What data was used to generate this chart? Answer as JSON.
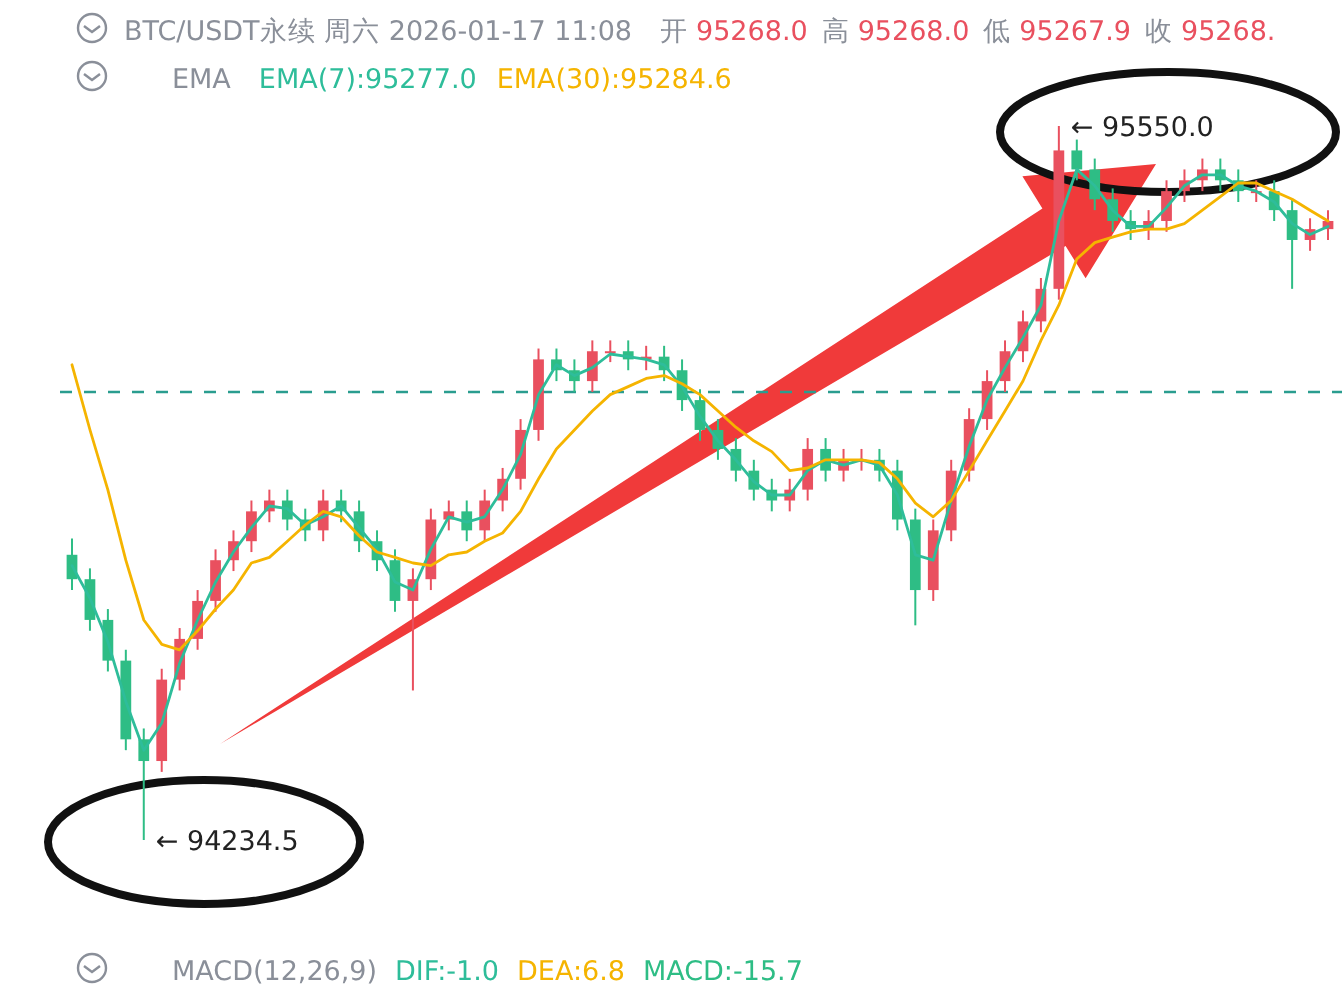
{
  "chart_data": {
    "type": "candlestick",
    "title": "BTC/USDT永续  周六  2026-01-17 11:08",
    "legend_title": "EMA",
    "legend": "top left",
    "categories": [
      null,
      null,
      null,
      null,
      null,
      null,
      null,
      null,
      null,
      null,
      null,
      null,
      null,
      null,
      null,
      null,
      null,
      null,
      null,
      null,
      null,
      null,
      null,
      null,
      null,
      null,
      null,
      null,
      null,
      null,
      null,
      null,
      null,
      null,
      null,
      null,
      null,
      null,
      null,
      null,
      null,
      null,
      null,
      null,
      null,
      null,
      null,
      null,
      null,
      null,
      null,
      null,
      null,
      null,
      null,
      null,
      null,
      null,
      null,
      null,
      null,
      null,
      null,
      null,
      null,
      null,
      null,
      null,
      null,
      null,
      null
    ],
    "ohlc": [
      [
        94760,
        94790,
        94695,
        94715
      ],
      [
        94715,
        94735,
        94620,
        94640
      ],
      [
        94640,
        94660,
        94545,
        94565
      ],
      [
        94565,
        94585,
        94400,
        94420
      ],
      [
        94420,
        94440,
        94234.5,
        94380
      ],
      [
        94380,
        94550,
        94360,
        94530
      ],
      [
        94530,
        94625,
        94510,
        94605
      ],
      [
        94605,
        94695,
        94585,
        94675
      ],
      [
        94675,
        94770,
        94655,
        94750
      ],
      [
        94750,
        94805,
        94730,
        94785
      ],
      [
        94785,
        94860,
        94765,
        94840
      ],
      [
        94840,
        94880,
        94820,
        94860
      ],
      [
        94860,
        94880,
        94805,
        94825
      ],
      [
        94825,
        94845,
        94785,
        94805
      ],
      [
        94805,
        94880,
        94785,
        94860
      ],
      [
        94860,
        94880,
        94820,
        94840
      ],
      [
        94840,
        94860,
        94765,
        94785
      ],
      [
        94785,
        94805,
        94730,
        94750
      ],
      [
        94750,
        94770,
        94655,
        94675
      ],
      [
        94675,
        94735,
        94510,
        94715
      ],
      [
        94715,
        94845,
        94695,
        94825
      ],
      [
        94825,
        94860,
        94805,
        94840
      ],
      [
        94840,
        94860,
        94785,
        94805
      ],
      [
        94805,
        94880,
        94785,
        94860
      ],
      [
        94860,
        94920,
        94840,
        94900
      ],
      [
        94900,
        95010,
        94880,
        94990
      ],
      [
        94990,
        95140,
        94970,
        95120
      ],
      [
        95120,
        95140,
        95080,
        95100
      ],
      [
        95100,
        95120,
        95060,
        95080
      ],
      [
        95080,
        95155,
        95060,
        95135
      ],
      [
        95135,
        95155,
        95115,
        95135
      ],
      [
        95135,
        95155,
        95100,
        95120
      ],
      [
        95120,
        95145,
        95100,
        95125
      ],
      [
        95125,
        95145,
        95080,
        95100
      ],
      [
        95100,
        95120,
        95025,
        95045
      ],
      [
        95045,
        95065,
        94970,
        94990
      ],
      [
        94990,
        95010,
        94935,
        94955
      ],
      [
        94955,
        94975,
        94895,
        94915
      ],
      [
        94915,
        94935,
        94860,
        94880
      ],
      [
        94880,
        94900,
        94840,
        94860
      ],
      [
        94860,
        94900,
        94840,
        94880
      ],
      [
        94880,
        94975,
        94860,
        94955
      ],
      [
        94955,
        94975,
        94895,
        94915
      ],
      [
        94915,
        94955,
        94895,
        94935
      ],
      [
        94935,
        94955,
        94915,
        94935
      ],
      [
        94935,
        94955,
        94895,
        94915
      ],
      [
        94915,
        94935,
        94805,
        94825
      ],
      [
        94825,
        94845,
        94630,
        94695
      ],
      [
        94695,
        94825,
        94675,
        94805
      ],
      [
        94805,
        94935,
        94785,
        94915
      ],
      [
        94915,
        95030,
        94895,
        95010
      ],
      [
        95010,
        95100,
        94990,
        95080
      ],
      [
        95080,
        95155,
        95060,
        95135
      ],
      [
        95135,
        95210,
        95115,
        95190
      ],
      [
        95190,
        95270,
        95170,
        95250
      ],
      [
        95250,
        95550.0,
        95230,
        95505
      ],
      [
        95505,
        95525,
        95450,
        95470
      ],
      [
        95470,
        95490,
        95395,
        95415
      ],
      [
        95415,
        95435,
        95355,
        95375
      ],
      [
        95375,
        95395,
        95340,
        95360
      ],
      [
        95360,
        95395,
        95340,
        95375
      ],
      [
        95375,
        95450,
        95355,
        95430
      ],
      [
        95430,
        95470,
        95410,
        95450
      ],
      [
        95450,
        95490,
        95430,
        95470
      ],
      [
        95470,
        95490,
        95430,
        95450
      ],
      [
        95450,
        95470,
        95410,
        95430
      ],
      [
        95430,
        95450,
        95410,
        95430
      ],
      [
        95430,
        95450,
        95375,
        95395
      ],
      [
        95395,
        95415,
        95250,
        95340
      ],
      [
        95340,
        95380,
        95320,
        95360
      ],
      [
        95360,
        95395,
        95340,
        95375
      ]
    ],
    "series": [
      {
        "type": "line",
        "name": "EMA(7):95277.0",
        "color": "#2ebd9a",
        "values": [
          94740,
          94680,
          94600,
          94490,
          94400,
          94450,
          94560,
          94640,
          94710,
          94765,
          94810,
          94850,
          94845,
          94815,
          94830,
          94850,
          94810,
          94770,
          94710,
          94695,
          94770,
          94830,
          94820,
          94830,
          94880,
          94945,
          95055,
          95110,
          95090,
          95105,
          95130,
          95125,
          95120,
          95110,
          95070,
          95015,
          94970,
          94935,
          94895,
          94870,
          94870,
          94915,
          94935,
          94925,
          94935,
          94925,
          94870,
          94760,
          94750,
          94860,
          94960,
          95045,
          95105,
          95160,
          95220,
          95375,
          95470,
          95440,
          95395,
          95365,
          95365,
          95400,
          95440,
          95460,
          95460,
          95440,
          95430,
          95410,
          95370,
          95350,
          95365
        ]
      },
      {
        "type": "line",
        "name": "EMA(30):95284.6",
        "color": "#f5b400",
        "values": [
          95110,
          94990,
          94880,
          94750,
          94640,
          94595,
          94585,
          94620,
          94660,
          94695,
          94745,
          94755,
          94785,
          94815,
          94840,
          94830,
          94795,
          94765,
          94755,
          94745,
          94740,
          94760,
          94765,
          94785,
          94800,
          94840,
          94900,
          94955,
          94990,
          95025,
          95055,
          95070,
          95085,
          95090,
          95075,
          95055,
          95025,
          94995,
          94970,
          94950,
          94915,
          94920,
          94935,
          94935,
          94935,
          94930,
          94900,
          94855,
          94830,
          94860,
          94915,
          94970,
          95025,
          95080,
          95155,
          95220,
          95305,
          95335,
          95345,
          95355,
          95360,
          95360,
          95370,
          95395,
          95420,
          95445,
          95445,
          95430,
          95415,
          95395,
          95375
        ]
      }
    ],
    "ref_lines": [
      {
        "axis": "y",
        "value": 95060,
        "color": "#2a9d8f",
        "line_style": "dashed"
      }
    ],
    "annotations": [
      "开",
      "95268.0",
      "高",
      "95268.0",
      "低",
      "95267.9",
      "收",
      "95268.",
      "MACD(12,26,9)",
      "DIF:-1.0",
      "DEA:6.8",
      "MACD:-15.7",
      "← 94234.5",
      "← 95550.0"
    ]
  }
}
